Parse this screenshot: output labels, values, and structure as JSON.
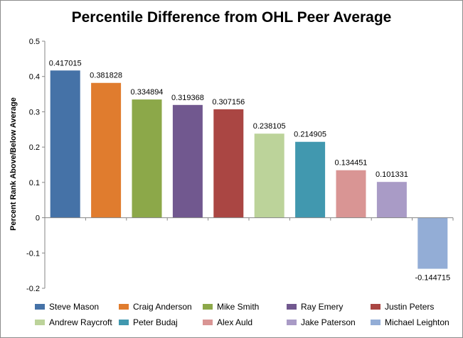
{
  "chart_data": {
    "type": "bar",
    "title": "Percentile Difference from OHL Peer Average",
    "ylabel": "Percent Rank Above/Below Average",
    "xlabel": "",
    "ylim": [
      -0.2,
      0.5
    ],
    "yticks": [
      0.5,
      0.4,
      0.3,
      0.2,
      0.1,
      0,
      -0.1,
      -0.2
    ],
    "ytick_labels": [
      "0.5",
      "0.4",
      "0.3",
      "0.2",
      "0.1",
      "0",
      "-0.1",
      "-0.2"
    ],
    "grid": false,
    "legend": "bottom",
    "series": [
      {
        "name": "Steve Mason",
        "value": 0.417015,
        "label": "0.417015",
        "color": "#4572A7"
      },
      {
        "name": "Craig Anderson",
        "value": 0.381828,
        "label": "0.381828",
        "color": "#E07C2E"
      },
      {
        "name": "Mike Smith",
        "value": 0.334894,
        "label": "0.334894",
        "color": "#8CA849"
      },
      {
        "name": "Ray Emery",
        "value": 0.319368,
        "label": "0.319368",
        "color": "#71588F"
      },
      {
        "name": "Justin Peters",
        "value": 0.307156,
        "label": "0.307156",
        "color": "#AA4643"
      },
      {
        "name": "Andrew Raycroft",
        "value": 0.238105,
        "label": "0.238105",
        "color": "#BCD39A"
      },
      {
        "name": "Peter Budaj",
        "value": 0.214905,
        "label": "0.214905",
        "color": "#4198AF"
      },
      {
        "name": "Alex Auld",
        "value": 0.134451,
        "label": "0.134451",
        "color": "#D99594"
      },
      {
        "name": "Jake Paterson",
        "value": 0.101331,
        "label": "0.101331",
        "color": "#A99BC6"
      },
      {
        "name": "Michael Leighton",
        "value": -0.144715,
        "label": "-0.144715",
        "color": "#93ADD6"
      }
    ]
  }
}
